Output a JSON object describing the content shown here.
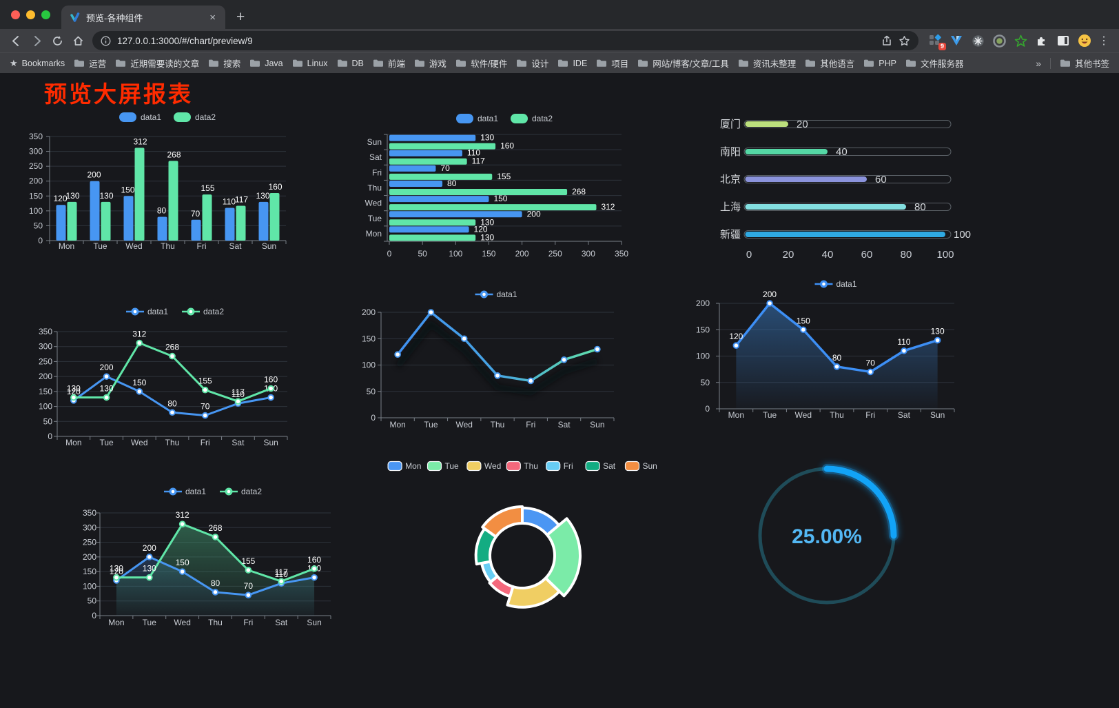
{
  "browser": {
    "tab": {
      "title": "预览-各种组件"
    },
    "url": "127.0.0.1:3000/#/chart/preview/9",
    "bookmarks_label": "Bookmarks",
    "bookmarks": [
      "运营",
      "近期需要读的文章",
      "搜索",
      "Java",
      "Linux",
      "DB",
      "前端",
      "游戏",
      "软件/硬件",
      "设计",
      "IDE",
      "项目",
      "网站/博客/文章/工具",
      "资讯未整理",
      "其他语言",
      "PHP",
      "文件服务器"
    ],
    "overflow": "»",
    "other_bookmarks": "其他书签",
    "extension_badge": "9"
  },
  "icons": {
    "close": "×",
    "new_tab": "+",
    "menu": "⋮"
  },
  "page": {
    "title": "预览大屏报表",
    "title_color": "#FF2B00"
  },
  "theme": {
    "background": "#17181C",
    "grid": "#2E333B",
    "axis": "#7A8088",
    "tick_text": "#C9CDD4",
    "label_text": "#FFFFFF",
    "data1": "#4796F2",
    "data2": "#60E6A8"
  },
  "chart_data": [
    {
      "id": "bar-vertical",
      "type": "bar",
      "categories": [
        "Mon",
        "Tue",
        "Wed",
        "Thu",
        "Fri",
        "Sat",
        "Sun"
      ],
      "series": [
        {
          "name": "data1",
          "color": "#4796F2",
          "values": [
            120,
            200,
            150,
            80,
            70,
            110,
            130
          ]
        },
        {
          "name": "data2",
          "color": "#60E6A8",
          "values": [
            130,
            130,
            312,
            268,
            155,
            117,
            160
          ]
        }
      ],
      "ylim": [
        0,
        350
      ],
      "yticks": [
        0,
        50,
        100,
        150,
        200,
        250,
        300,
        350
      ],
      "legend_position": "top",
      "grid": true
    },
    {
      "id": "bar-horizontal",
      "type": "hbar",
      "categories": [
        "Mon",
        "Tue",
        "Wed",
        "Thu",
        "Fri",
        "Sat",
        "Sun"
      ],
      "series": [
        {
          "name": "data1",
          "color": "#4796F2",
          "values": [
            120,
            200,
            150,
            80,
            70,
            110,
            130
          ]
        },
        {
          "name": "data2",
          "color": "#60E6A8",
          "values": [
            130,
            130,
            312,
            268,
            155,
            117,
            160
          ]
        }
      ],
      "xlim": [
        0,
        350
      ],
      "xticks": [
        0,
        50,
        100,
        150,
        200,
        250,
        300,
        350
      ],
      "legend_position": "top"
    },
    {
      "id": "progress-bars",
      "type": "progress",
      "max": 100,
      "xticks": [
        0,
        20,
        40,
        60,
        80,
        100
      ],
      "items": [
        {
          "label": "厦门",
          "value": 20,
          "color": "#BCDF7D"
        },
        {
          "label": "南阳",
          "value": 40,
          "color": "#55D7A5"
        },
        {
          "label": "北京",
          "value": 60,
          "color": "#8B93DC"
        },
        {
          "label": "上海",
          "value": 80,
          "color": "#83DFE0"
        },
        {
          "label": "新疆",
          "value": 100,
          "color": "#2FA9E2"
        }
      ]
    },
    {
      "id": "line-double",
      "type": "line2",
      "categories": [
        "Mon",
        "Tue",
        "Wed",
        "Thu",
        "Fri",
        "Sat",
        "Sun"
      ],
      "series": [
        {
          "name": "data1",
          "color": "#4796F2",
          "values": [
            120,
            200,
            150,
            80,
            70,
            110,
            130
          ]
        },
        {
          "name": "data2",
          "color": "#60E6A8",
          "values": [
            130,
            130,
            312,
            268,
            155,
            117,
            160
          ]
        }
      ],
      "ylim": [
        0,
        350
      ],
      "yticks": [
        0,
        50,
        100,
        150,
        200,
        250,
        300,
        350
      ],
      "labels": true
    },
    {
      "id": "line-gradient",
      "type": "line-gradient",
      "categories": [
        "Mon",
        "Tue",
        "Wed",
        "Thu",
        "Fri",
        "Sat",
        "Sun"
      ],
      "series": [
        {
          "name": "data1",
          "values": [
            120,
            200,
            150,
            80,
            70,
            110,
            130
          ],
          "gradient": [
            "#3F8DF4",
            "#47A5E3",
            "#58CDBB",
            "#66E8A6"
          ]
        }
      ],
      "ylim": [
        0,
        200
      ],
      "yticks": [
        0,
        50,
        100,
        150,
        200
      ],
      "labels": false
    },
    {
      "id": "line-area",
      "type": "line-area",
      "categories": [
        "Mon",
        "Tue",
        "Wed",
        "Thu",
        "Fri",
        "Sat",
        "Sun"
      ],
      "series": [
        {
          "name": "data1",
          "color": "#3D8FF5",
          "values": [
            120,
            200,
            150,
            80,
            70,
            110,
            130
          ]
        }
      ],
      "ylim": [
        0,
        200
      ],
      "yticks": [
        0,
        50,
        100,
        150,
        200
      ],
      "labels": true
    },
    {
      "id": "line-double-area",
      "type": "line2area",
      "categories": [
        "Mon",
        "Tue",
        "Wed",
        "Thu",
        "Fri",
        "Sat",
        "Sun"
      ],
      "series": [
        {
          "name": "data1",
          "color": "#4796F2",
          "values": [
            120,
            200,
            150,
            80,
            70,
            110,
            130
          ]
        },
        {
          "name": "data2",
          "color": "#60E6A8",
          "values": [
            130,
            130,
            312,
            268,
            155,
            117,
            160
          ]
        }
      ],
      "ylim": [
        0,
        350
      ],
      "yticks": [
        0,
        50,
        100,
        150,
        200,
        250,
        300,
        350
      ],
      "labels": true
    },
    {
      "id": "pie-donut",
      "type": "pie",
      "slices": [
        {
          "name": "Mon",
          "value": 120,
          "color": "#4B96F3"
        },
        {
          "name": "Tue",
          "value": 200,
          "color": "#7BEBA8"
        },
        {
          "name": "Wed",
          "value": 150,
          "color": "#F0CE63"
        },
        {
          "name": "Thu",
          "value": 80,
          "color": "#F4687C"
        },
        {
          "name": "Fri",
          "value": 70,
          "color": "#67CDF4"
        },
        {
          "name": "Sat",
          "value": 110,
          "color": "#13AC82"
        },
        {
          "name": "Sun",
          "value": 130,
          "color": "#F28E42"
        }
      ]
    },
    {
      "id": "gauge-percent",
      "type": "gauge",
      "value": 25,
      "label": "25.00%",
      "color": "#12A3F7",
      "track_color": "#1F4C59",
      "text_color": "#53B7F3"
    }
  ]
}
